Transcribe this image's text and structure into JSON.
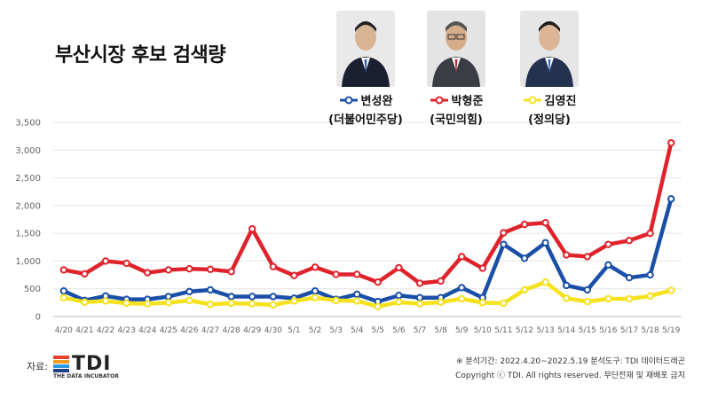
{
  "title": "부산시장 후보 검색량",
  "candidates": [
    {
      "name": "변성완",
      "party": "(더불어민주당)",
      "color": "#1a4fa8"
    },
    {
      "name": "박형준",
      "party": "(국민의힘)",
      "color": "#e0222b"
    },
    {
      "name": "김영진",
      "party": "(정의당)",
      "color": "#f5e11c"
    }
  ],
  "footer": {
    "source_label": "자료:",
    "logo_text": "TDI",
    "logo_sub": "THE DATA INCUBATOR",
    "period": "※ 분석기간: 2022.4.20~2022.5.19   분석도구: TDI 데이터드래곤",
    "copyright": "Copyright ⓒ TDI. All rights reserved. 무단전재 및 재배포 금지"
  },
  "chart_data": {
    "type": "line",
    "title": "부산시장 후보 검색량",
    "x": [
      "4/20",
      "4/21",
      "4/22",
      "4/23",
      "4/24",
      "4/25",
      "4/26",
      "4/27",
      "4/28",
      "4/29",
      "4/30",
      "5/1",
      "5/2",
      "5/3",
      "5/4",
      "5/5",
      "5/6",
      "5/7",
      "5/8",
      "5/9",
      "5/10",
      "5/11",
      "5/12",
      "5/13",
      "5/14",
      "5/15",
      "5/16",
      "5/17",
      "5/18",
      "5/19"
    ],
    "ylim": [
      0,
      3500
    ],
    "yticks": [
      0,
      500,
      1000,
      1500,
      2000,
      2500,
      3000,
      3500
    ],
    "ytick_labels": [
      "0",
      "500",
      "1,000",
      "1,500",
      "2,000",
      "2,500",
      "3,000",
      "3,500"
    ],
    "grid": true,
    "series": [
      {
        "name": "변성완",
        "color": "#1a4fa8",
        "values": [
          460,
          290,
          370,
          310,
          310,
          360,
          450,
          480,
          360,
          360,
          360,
          330,
          460,
          310,
          400,
          270,
          380,
          340,
          340,
          520,
          340,
          1300,
          1050,
          1330,
          560,
          480,
          930,
          700,
          750,
          2120
        ]
      },
      {
        "name": "박형준",
        "color": "#e0222b",
        "values": [
          840,
          770,
          1000,
          960,
          790,
          840,
          860,
          850,
          810,
          1580,
          900,
          740,
          890,
          760,
          760,
          620,
          880,
          600,
          640,
          1080,
          870,
          1510,
          1660,
          1690,
          1110,
          1080,
          1300,
          1370,
          1500,
          3130
        ]
      },
      {
        "name": "김영진",
        "color": "#f5e11c",
        "values": [
          340,
          260,
          280,
          240,
          230,
          250,
          290,
          220,
          240,
          230,
          210,
          280,
          340,
          290,
          280,
          180,
          260,
          230,
          260,
          320,
          250,
          240,
          480,
          620,
          330,
          270,
          320,
          320,
          370,
          470
        ]
      }
    ]
  }
}
